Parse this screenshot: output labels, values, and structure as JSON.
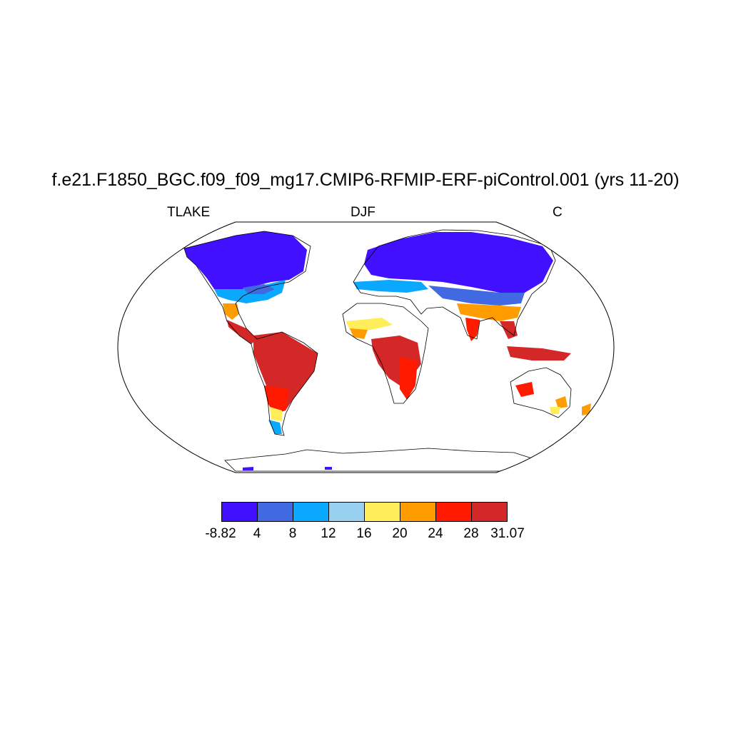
{
  "header": {
    "title": "f.e21.F1850_BGC.f09_f09_mg17.CMIP6-RFMIP-ERF-piControl.001 (yrs 11-20)",
    "left_label": "TLAKE",
    "center_label": "DJF",
    "right_label": "C"
  },
  "colorbar": {
    "colors": [
      "#4010ff",
      "#4169e1",
      "#0aa8ff",
      "#98d0ef",
      "#ffee5a",
      "#ff9d00",
      "#ff1a00",
      "#d42828"
    ],
    "labels": [
      "-8.82",
      "4",
      "8",
      "12",
      "16",
      "20",
      "24",
      "28",
      "31.07"
    ]
  },
  "map": {
    "projection": "Robinson",
    "variable_color_bins": {
      "cold": "#4010ff",
      "cool": "#4169e1",
      "mild": "#0aa8ff",
      "light": "#98d0ef",
      "warm": "#ffee5a",
      "hot": "#ff9d00",
      "hotter": "#ff1a00",
      "hottest": "#d42828"
    }
  }
}
